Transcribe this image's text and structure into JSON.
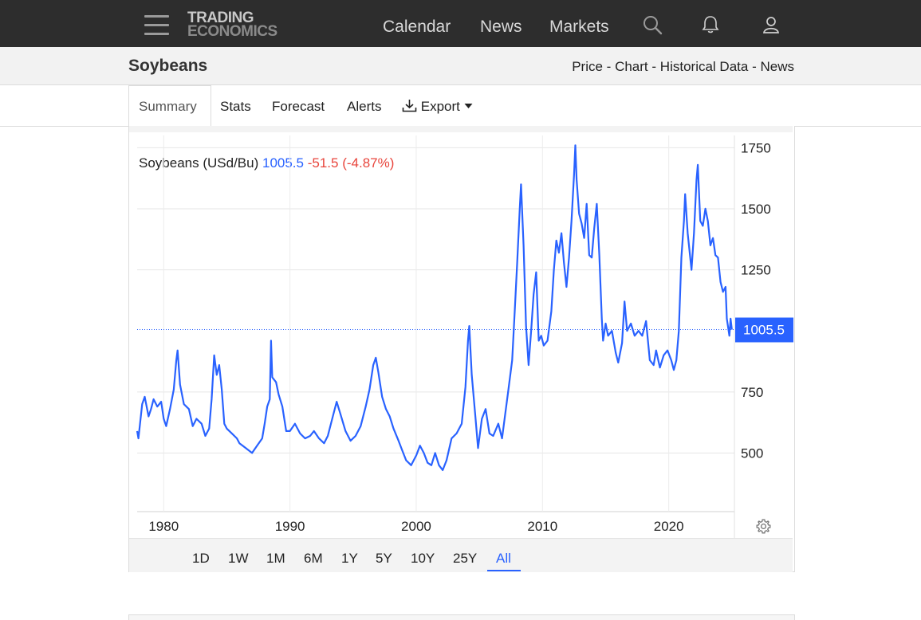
{
  "header": {
    "logo_line1": "TRADING",
    "logo_line2": "ECONOMICS",
    "nav": [
      "Calendar",
      "News",
      "Markets"
    ],
    "icons": [
      "menu-icon",
      "search-icon",
      "bell-icon",
      "user-icon"
    ]
  },
  "page": {
    "title": "Soybeans",
    "breadcrumbs": [
      "Price",
      "Chart",
      "Historical Data",
      "News"
    ],
    "breadcrumb_separator": "-"
  },
  "tabs": {
    "items": [
      "Summary",
      "Stats",
      "Forecast",
      "Alerts",
      "Export"
    ],
    "active": "Summary"
  },
  "chart": {
    "name": "Soybeans (USd/Bu)",
    "last_value": "1005.5",
    "change": "-51.5 (-4.87%)",
    "last_label": "1005.5",
    "ranges": [
      "1D",
      "1W",
      "1M",
      "6M",
      "1Y",
      "5Y",
      "10Y",
      "25Y",
      "All"
    ],
    "active_range": "All",
    "colors": {
      "line": "#2962ff",
      "negative": "#e8453c",
      "grid": "#e6e6e6"
    }
  },
  "chart_data": {
    "type": "line",
    "title": "Soybeans (USd/Bu)",
    "xlabel": "",
    "ylabel": "",
    "x_ticks": [
      1980,
      1990,
      2000,
      2010,
      2020
    ],
    "y_ticks": [
      500,
      750,
      1250,
      1500,
      1750
    ],
    "xlim": [
      1977.9,
      2025.2
    ],
    "ylim": [
      260,
      1800
    ],
    "grid": true,
    "reference_line": 1005.5,
    "series": [
      {
        "values": [
          [
            1977.9,
            590
          ],
          [
            1978.0,
            560
          ],
          [
            1978.3,
            700
          ],
          [
            1978.5,
            730
          ],
          [
            1978.8,
            650
          ],
          [
            1979.0,
            680
          ],
          [
            1979.2,
            720
          ],
          [
            1979.5,
            690
          ],
          [
            1979.8,
            710
          ],
          [
            1980.0,
            640
          ],
          [
            1980.2,
            610
          ],
          [
            1980.5,
            680
          ],
          [
            1980.8,
            760
          ],
          [
            1981.0,
            880
          ],
          [
            1981.1,
            920
          ],
          [
            1981.3,
            780
          ],
          [
            1981.6,
            700
          ],
          [
            1982.0,
            680
          ],
          [
            1982.3,
            610
          ],
          [
            1982.6,
            640
          ],
          [
            1983.0,
            620
          ],
          [
            1983.3,
            570
          ],
          [
            1983.6,
            600
          ],
          [
            1983.8,
            720
          ],
          [
            1984.0,
            900
          ],
          [
            1984.2,
            820
          ],
          [
            1984.4,
            860
          ],
          [
            1984.6,
            760
          ],
          [
            1984.8,
            620
          ],
          [
            1985.0,
            600
          ],
          [
            1985.4,
            580
          ],
          [
            1985.8,
            560
          ],
          [
            1986.0,
            540
          ],
          [
            1986.5,
            520
          ],
          [
            1987.0,
            500
          ],
          [
            1987.4,
            530
          ],
          [
            1987.8,
            560
          ],
          [
            1988.0,
            620
          ],
          [
            1988.2,
            690
          ],
          [
            1988.4,
            720
          ],
          [
            1988.5,
            960
          ],
          [
            1988.6,
            810
          ],
          [
            1988.9,
            790
          ],
          [
            1989.1,
            740
          ],
          [
            1989.4,
            690
          ],
          [
            1989.7,
            590
          ],
          [
            1990.0,
            590
          ],
          [
            1990.4,
            620
          ],
          [
            1990.8,
            580
          ],
          [
            1991.2,
            560
          ],
          [
            1991.6,
            570
          ],
          [
            1991.9,
            590
          ],
          [
            1992.3,
            560
          ],
          [
            1992.7,
            540
          ],
          [
            1993.0,
            570
          ],
          [
            1993.4,
            650
          ],
          [
            1993.7,
            710
          ],
          [
            1994.0,
            660
          ],
          [
            1994.4,
            590
          ],
          [
            1994.8,
            550
          ],
          [
            1995.2,
            570
          ],
          [
            1995.6,
            610
          ],
          [
            1996.0,
            690
          ],
          [
            1996.3,
            760
          ],
          [
            1996.6,
            860
          ],
          [
            1996.8,
            890
          ],
          [
            1997.0,
            830
          ],
          [
            1997.3,
            730
          ],
          [
            1997.6,
            680
          ],
          [
            1997.9,
            650
          ],
          [
            1998.2,
            600
          ],
          [
            1998.6,
            550
          ],
          [
            1998.9,
            510
          ],
          [
            1999.2,
            470
          ],
          [
            1999.6,
            450
          ],
          [
            2000.0,
            490
          ],
          [
            2000.3,
            530
          ],
          [
            2000.6,
            500
          ],
          [
            2000.9,
            460
          ],
          [
            2001.2,
            450
          ],
          [
            2001.5,
            500
          ],
          [
            2001.8,
            450
          ],
          [
            2002.1,
            430
          ],
          [
            2002.4,
            470
          ],
          [
            2002.8,
            560
          ],
          [
            2003.2,
            580
          ],
          [
            2003.6,
            620
          ],
          [
            2003.9,
            770
          ],
          [
            2004.1,
            960
          ],
          [
            2004.2,
            1020
          ],
          [
            2004.4,
            820
          ],
          [
            2004.7,
            640
          ],
          [
            2004.9,
            520
          ],
          [
            2005.2,
            640
          ],
          [
            2005.5,
            680
          ],
          [
            2005.8,
            580
          ],
          [
            2006.1,
            570
          ],
          [
            2006.5,
            620
          ],
          [
            2006.8,
            560
          ],
          [
            2007.0,
            640
          ],
          [
            2007.3,
            760
          ],
          [
            2007.6,
            880
          ],
          [
            2007.8,
            1080
          ],
          [
            2008.0,
            1280
          ],
          [
            2008.2,
            1500
          ],
          [
            2008.3,
            1600
          ],
          [
            2008.5,
            1350
          ],
          [
            2008.7,
            1020
          ],
          [
            2008.9,
            860
          ],
          [
            2009.1,
            1000
          ],
          [
            2009.3,
            1150
          ],
          [
            2009.5,
            1240
          ],
          [
            2009.7,
            960
          ],
          [
            2009.9,
            980
          ],
          [
            2010.1,
            940
          ],
          [
            2010.4,
            960
          ],
          [
            2010.7,
            1080
          ],
          [
            2010.9,
            1250
          ],
          [
            2011.1,
            1370
          ],
          [
            2011.3,
            1320
          ],
          [
            2011.5,
            1400
          ],
          [
            2011.7,
            1280
          ],
          [
            2011.9,
            1180
          ],
          [
            2012.1,
            1300
          ],
          [
            2012.3,
            1450
          ],
          [
            2012.5,
            1640
          ],
          [
            2012.6,
            1760
          ],
          [
            2012.7,
            1620
          ],
          [
            2012.9,
            1480
          ],
          [
            2013.1,
            1440
          ],
          [
            2013.3,
            1380
          ],
          [
            2013.5,
            1520
          ],
          [
            2013.7,
            1310
          ],
          [
            2013.9,
            1300
          ],
          [
            2014.1,
            1420
          ],
          [
            2014.3,
            1520
          ],
          [
            2014.5,
            1310
          ],
          [
            2014.7,
            1050
          ],
          [
            2014.8,
            960
          ],
          [
            2015.0,
            1030
          ],
          [
            2015.2,
            980
          ],
          [
            2015.5,
            1000
          ],
          [
            2015.8,
            910
          ],
          [
            2016.0,
            870
          ],
          [
            2016.3,
            950
          ],
          [
            2016.5,
            1120
          ],
          [
            2016.7,
            1000
          ],
          [
            2017.0,
            1030
          ],
          [
            2017.3,
            980
          ],
          [
            2017.6,
            1000
          ],
          [
            2017.9,
            980
          ],
          [
            2018.2,
            1040
          ],
          [
            2018.5,
            880
          ],
          [
            2018.8,
            860
          ],
          [
            2019.0,
            920
          ],
          [
            2019.3,
            850
          ],
          [
            2019.6,
            900
          ],
          [
            2019.9,
            920
          ],
          [
            2020.2,
            880
          ],
          [
            2020.4,
            840
          ],
          [
            2020.6,
            880
          ],
          [
            2020.8,
            1000
          ],
          [
            2021.0,
            1300
          ],
          [
            2021.2,
            1450
          ],
          [
            2021.3,
            1560
          ],
          [
            2021.5,
            1400
          ],
          [
            2021.8,
            1250
          ],
          [
            2022.0,
            1400
          ],
          [
            2022.2,
            1620
          ],
          [
            2022.3,
            1680
          ],
          [
            2022.5,
            1450
          ],
          [
            2022.7,
            1430
          ],
          [
            2022.9,
            1500
          ],
          [
            2023.1,
            1450
          ],
          [
            2023.3,
            1350
          ],
          [
            2023.5,
            1380
          ],
          [
            2023.7,
            1310
          ],
          [
            2023.9,
            1300
          ],
          [
            2024.1,
            1200
          ],
          [
            2024.3,
            1160
          ],
          [
            2024.5,
            1180
          ],
          [
            2024.6,
            1050
          ],
          [
            2024.8,
            980
          ],
          [
            2024.9,
            1050
          ],
          [
            2025.0,
            1005.5
          ]
        ]
      }
    ]
  }
}
